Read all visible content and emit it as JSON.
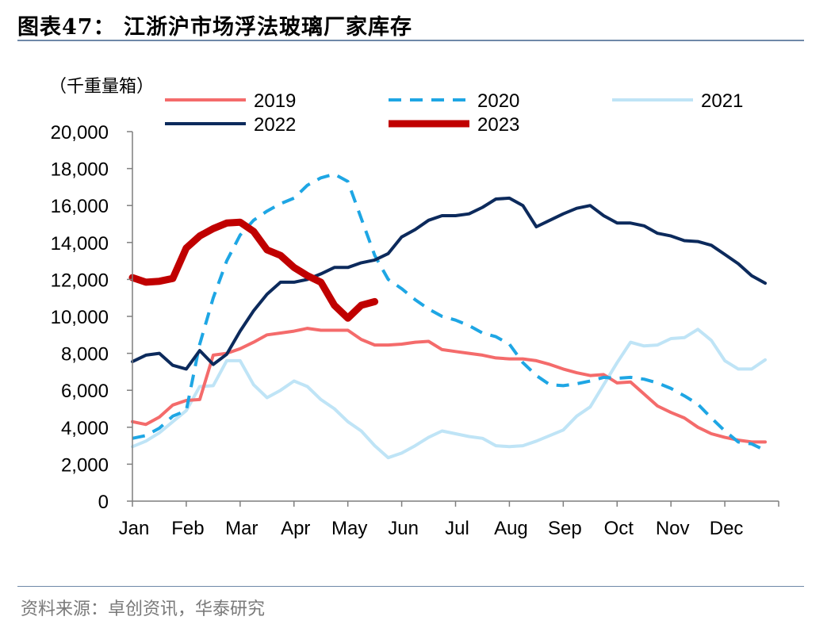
{
  "page": {
    "title": "图表47：  江浙沪市场浮法玻璃厂家库存",
    "source": "资料来源：卓创资讯，华泰研究"
  },
  "chart_data": {
    "type": "line",
    "unit_label": "（千重量箱）",
    "ylim": [
      0,
      20000
    ],
    "yticks": [
      0,
      2000,
      4000,
      6000,
      8000,
      10000,
      12000,
      14000,
      16000,
      18000,
      20000
    ],
    "ytick_labels": [
      "0",
      "2,000",
      "4,000",
      "6,000",
      "8,000",
      "10,000",
      "12,000",
      "14,000",
      "16,000",
      "18,000",
      "20,000"
    ],
    "xlim": [
      0,
      12
    ],
    "months": [
      "Jan",
      "Feb",
      "Mar",
      "Apr",
      "May",
      "Jun",
      "Jul",
      "Aug",
      "Sep",
      "Oct",
      "Nov",
      "Dec"
    ],
    "x_unit": "month index (0 = start of Jan)",
    "grid": false,
    "legend": "top",
    "series": [
      {
        "name": "2019",
        "color": "#f46b6b",
        "dash": "solid",
        "width": 4,
        "points": [
          [
            0,
            4300
          ],
          [
            0.25,
            4150
          ],
          [
            0.5,
            4550
          ],
          [
            0.75,
            5200
          ],
          [
            1,
            5450
          ],
          [
            1.25,
            5500
          ],
          [
            1.5,
            7900
          ],
          [
            1.75,
            8000
          ],
          [
            2,
            8250
          ],
          [
            2.25,
            8600
          ],
          [
            2.5,
            9000
          ],
          [
            2.75,
            9100
          ],
          [
            3,
            9200
          ],
          [
            3.25,
            9350
          ],
          [
            3.5,
            9250
          ],
          [
            3.75,
            9250
          ],
          [
            4,
            9250
          ],
          [
            4.25,
            8750
          ],
          [
            4.5,
            8450
          ],
          [
            4.75,
            8450
          ],
          [
            5,
            8500
          ],
          [
            5.25,
            8600
          ],
          [
            5.5,
            8650
          ],
          [
            5.75,
            8200
          ],
          [
            6,
            8100
          ],
          [
            6.25,
            8000
          ],
          [
            6.5,
            7900
          ],
          [
            6.75,
            7750
          ],
          [
            7,
            7700
          ],
          [
            7.25,
            7700
          ],
          [
            7.5,
            7600
          ],
          [
            7.75,
            7400
          ],
          [
            8,
            7150
          ],
          [
            8.25,
            6950
          ],
          [
            8.5,
            6800
          ],
          [
            8.75,
            6850
          ],
          [
            9,
            6400
          ],
          [
            9.25,
            6450
          ],
          [
            9.5,
            5800
          ],
          [
            9.75,
            5150
          ],
          [
            10,
            4800
          ],
          [
            10.25,
            4500
          ],
          [
            10.5,
            4000
          ],
          [
            10.75,
            3650
          ],
          [
            11,
            3450
          ],
          [
            11.25,
            3300
          ],
          [
            11.5,
            3200
          ],
          [
            11.75,
            3200
          ]
        ]
      },
      {
        "name": "2020",
        "color": "#1ea6e4",
        "dash": "dashed",
        "width": 4,
        "points": [
          [
            0,
            3400
          ],
          [
            0.25,
            3550
          ],
          [
            0.5,
            3950
          ],
          [
            0.75,
            4600
          ],
          [
            1,
            4900
          ],
          [
            1.25,
            8500
          ],
          [
            1.5,
            11000
          ],
          [
            1.75,
            13000
          ],
          [
            2,
            14400
          ],
          [
            2.25,
            15200
          ],
          [
            2.5,
            15700
          ],
          [
            2.75,
            16100
          ],
          [
            3,
            16400
          ],
          [
            3.25,
            17100
          ],
          [
            3.5,
            17500
          ],
          [
            3.75,
            17700
          ],
          [
            4,
            17300
          ],
          [
            4.25,
            15300
          ],
          [
            4.5,
            13300
          ],
          [
            4.75,
            12000
          ],
          [
            5,
            11500
          ],
          [
            5.25,
            10900
          ],
          [
            5.5,
            10400
          ],
          [
            5.75,
            10000
          ],
          [
            6,
            9800
          ],
          [
            6.25,
            9500
          ],
          [
            6.5,
            9100
          ],
          [
            6.75,
            8900
          ],
          [
            7,
            8500
          ],
          [
            7.25,
            7500
          ],
          [
            7.5,
            6800
          ],
          [
            7.75,
            6300
          ],
          [
            8,
            6250
          ],
          [
            8.25,
            6350
          ],
          [
            8.5,
            6500
          ],
          [
            8.75,
            6700
          ],
          [
            9,
            6650
          ],
          [
            9.25,
            6700
          ],
          [
            9.5,
            6600
          ],
          [
            9.75,
            6400
          ],
          [
            10,
            6100
          ],
          [
            10.25,
            5700
          ],
          [
            10.5,
            5250
          ],
          [
            10.75,
            4500
          ],
          [
            11,
            3800
          ],
          [
            11.25,
            3200
          ],
          [
            11.5,
            3100
          ],
          [
            11.75,
            2750
          ]
        ]
      },
      {
        "name": "2021",
        "color": "#bfe4f6",
        "dash": "solid",
        "width": 4,
        "points": [
          [
            0,
            2950
          ],
          [
            0.25,
            3250
          ],
          [
            0.5,
            3700
          ],
          [
            0.75,
            4300
          ],
          [
            1,
            4900
          ],
          [
            1.25,
            6200
          ],
          [
            1.5,
            6250
          ],
          [
            1.75,
            7600
          ],
          [
            2,
            7600
          ],
          [
            2.25,
            6300
          ],
          [
            2.5,
            5600
          ],
          [
            2.75,
            6000
          ],
          [
            3,
            6500
          ],
          [
            3.25,
            6200
          ],
          [
            3.5,
            5500
          ],
          [
            3.75,
            5000
          ],
          [
            4,
            4300
          ],
          [
            4.25,
            3800
          ],
          [
            4.5,
            3000
          ],
          [
            4.75,
            2350
          ],
          [
            5,
            2600
          ],
          [
            5.25,
            3000
          ],
          [
            5.5,
            3450
          ],
          [
            5.75,
            3800
          ],
          [
            6,
            3650
          ],
          [
            6.25,
            3500
          ],
          [
            6.5,
            3400
          ],
          [
            6.75,
            3000
          ],
          [
            7,
            2950
          ],
          [
            7.25,
            3000
          ],
          [
            7.5,
            3250
          ],
          [
            7.75,
            3550
          ],
          [
            8,
            3850
          ],
          [
            8.25,
            4600
          ],
          [
            8.5,
            5100
          ],
          [
            8.75,
            6300
          ],
          [
            9,
            7500
          ],
          [
            9.25,
            8600
          ],
          [
            9.5,
            8400
          ],
          [
            9.75,
            8450
          ],
          [
            10,
            8800
          ],
          [
            10.25,
            8850
          ],
          [
            10.5,
            9300
          ],
          [
            10.75,
            8700
          ],
          [
            11,
            7600
          ],
          [
            11.25,
            7150
          ],
          [
            11.5,
            7150
          ],
          [
            11.75,
            7650
          ]
        ]
      },
      {
        "name": "2022",
        "color": "#0c2a5c",
        "dash": "solid",
        "width": 4,
        "points": [
          [
            0,
            7550
          ],
          [
            0.25,
            7900
          ],
          [
            0.5,
            8000
          ],
          [
            0.75,
            7350
          ],
          [
            1,
            7150
          ],
          [
            1.25,
            8150
          ],
          [
            1.5,
            7400
          ],
          [
            1.75,
            7950
          ],
          [
            2,
            9200
          ],
          [
            2.25,
            10300
          ],
          [
            2.5,
            11200
          ],
          [
            2.75,
            11850
          ],
          [
            3,
            11850
          ],
          [
            3.25,
            12000
          ],
          [
            3.5,
            12300
          ],
          [
            3.75,
            12650
          ],
          [
            4,
            12650
          ],
          [
            4.25,
            12900
          ],
          [
            4.5,
            13050
          ],
          [
            4.75,
            13400
          ],
          [
            5,
            14300
          ],
          [
            5.25,
            14700
          ],
          [
            5.5,
            15200
          ],
          [
            5.75,
            15450
          ],
          [
            6,
            15450
          ],
          [
            6.25,
            15550
          ],
          [
            6.5,
            15900
          ],
          [
            6.75,
            16350
          ],
          [
            7,
            16400
          ],
          [
            7.25,
            16000
          ],
          [
            7.5,
            14850
          ],
          [
            7.75,
            15200
          ],
          [
            8,
            15550
          ],
          [
            8.25,
            15850
          ],
          [
            8.5,
            16000
          ],
          [
            8.75,
            15450
          ],
          [
            9,
            15050
          ],
          [
            9.25,
            15050
          ],
          [
            9.5,
            14900
          ],
          [
            9.75,
            14500
          ],
          [
            10,
            14350
          ],
          [
            10.25,
            14100
          ],
          [
            10.5,
            14050
          ],
          [
            10.75,
            13850
          ],
          [
            11,
            13350
          ],
          [
            11.25,
            12850
          ],
          [
            11.5,
            12200
          ],
          [
            11.75,
            11800
          ]
        ]
      },
      {
        "name": "2023",
        "color": "#c00000",
        "dash": "solid",
        "width": 9,
        "points": [
          [
            0,
            12100
          ],
          [
            0.25,
            11850
          ],
          [
            0.5,
            11900
          ],
          [
            0.75,
            12050
          ],
          [
            1,
            13700
          ],
          [
            1.25,
            14350
          ],
          [
            1.5,
            14750
          ],
          [
            1.75,
            15050
          ],
          [
            2,
            15100
          ],
          [
            2.25,
            14600
          ],
          [
            2.5,
            13600
          ],
          [
            2.75,
            13300
          ],
          [
            3,
            12650
          ],
          [
            3.25,
            12200
          ],
          [
            3.5,
            11850
          ],
          [
            3.75,
            10600
          ],
          [
            4,
            9900
          ],
          [
            4.25,
            10600
          ],
          [
            4.5,
            10800
          ]
        ]
      }
    ]
  }
}
